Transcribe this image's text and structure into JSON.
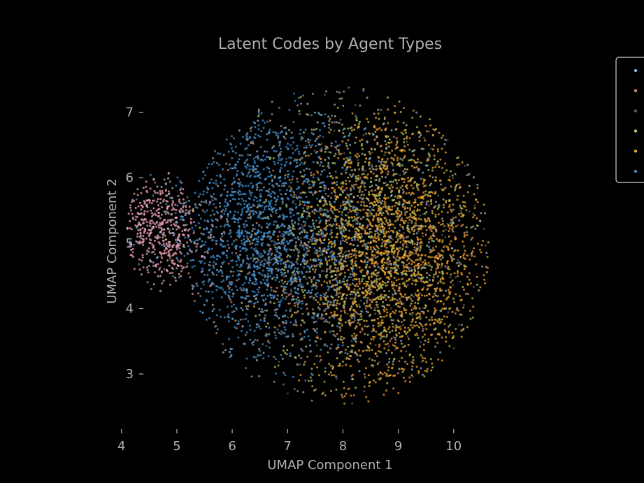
{
  "chart_data": {
    "type": "scatter",
    "title": "Latent Codes by Agent Types",
    "xlabel": "UMAP Component 1",
    "ylabel": "UMAP Component 2",
    "xlim": [
      3.7,
      10.9
    ],
    "ylim": [
      2.2,
      7.7
    ],
    "xticks": [
      4,
      5,
      6,
      7,
      8,
      9,
      10
    ],
    "yticks": [
      3,
      4,
      5,
      6,
      7
    ],
    "grid": false,
    "legend_position": "upper-right, outside plot",
    "series": [
      {
        "color": "#8fb3d9",
        "clusters": [
          {
            "cx": 7.6,
            "cy": 5.1,
            "sx": 1.7,
            "sy": 1.1,
            "weight": 1
          }
        ]
      },
      {
        "color": "#c98a7a",
        "clusters": [
          {
            "cx": 7.6,
            "cy": 4.8,
            "sx": 1.5,
            "sy": 1.0,
            "weight": 1
          }
        ]
      },
      {
        "color": "#5a5a5a",
        "clusters": [
          {
            "cx": 8.6,
            "cy": 4.9,
            "sx": 1.0,
            "sy": 1.0,
            "weight": 1
          }
        ]
      },
      {
        "color": "#b5c96a",
        "clusters": [
          {
            "cx": 8.5,
            "cy": 5.0,
            "sx": 1.0,
            "sy": 1.1,
            "weight": 1
          }
        ]
      },
      {
        "color": "#f0a629",
        "clusters": [
          {
            "cx": 8.9,
            "cy": 4.8,
            "sx": 0.85,
            "sy": 1.05,
            "weight": 1
          }
        ]
      },
      {
        "color": "#3d8fd1",
        "clusters": [
          {
            "cx": 6.5,
            "cy": 5.2,
            "sx": 0.8,
            "sy": 1.0,
            "weight": 1
          }
        ]
      },
      {
        "color": "#f2a7b8",
        "clusters": [
          {
            "cx": 4.7,
            "cy": 5.2,
            "sx": 0.35,
            "sy": 0.4,
            "weight": 1
          }
        ]
      }
    ]
  }
}
